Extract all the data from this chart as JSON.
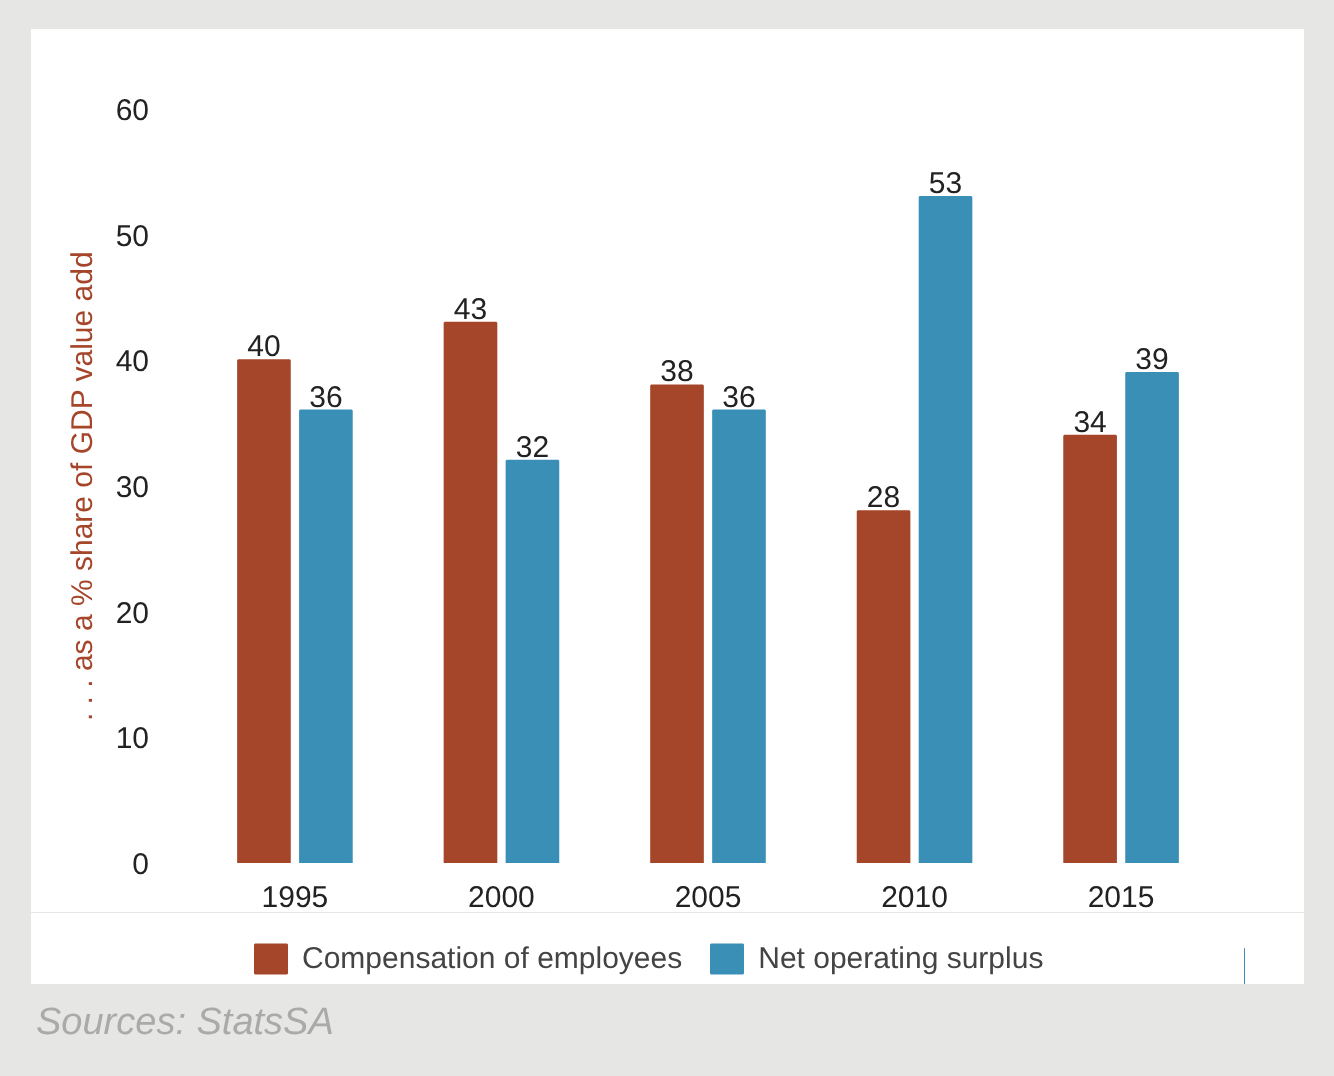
{
  "chart_data": {
    "type": "bar",
    "ylabel": ". . . as a % share of GDP value add",
    "categories": [
      "1995",
      "2000",
      "2005",
      "2010",
      "2015"
    ],
    "series": [
      {
        "name": "Compensation of employees",
        "color": "#a5462a",
        "values": [
          40,
          43,
          38,
          28,
          34
        ]
      },
      {
        "name": "Net operating surplus",
        "color": "#3a8fb7",
        "values": [
          36,
          32,
          36,
          53,
          39
        ]
      }
    ],
    "ylim": [
      0,
      60
    ],
    "yticks": [
      0,
      10,
      20,
      30,
      40,
      50,
      60
    ],
    "data_labels": true,
    "grid": false,
    "legend": "bottom",
    "annotations": [
      "Sources: StatsSA"
    ]
  }
}
